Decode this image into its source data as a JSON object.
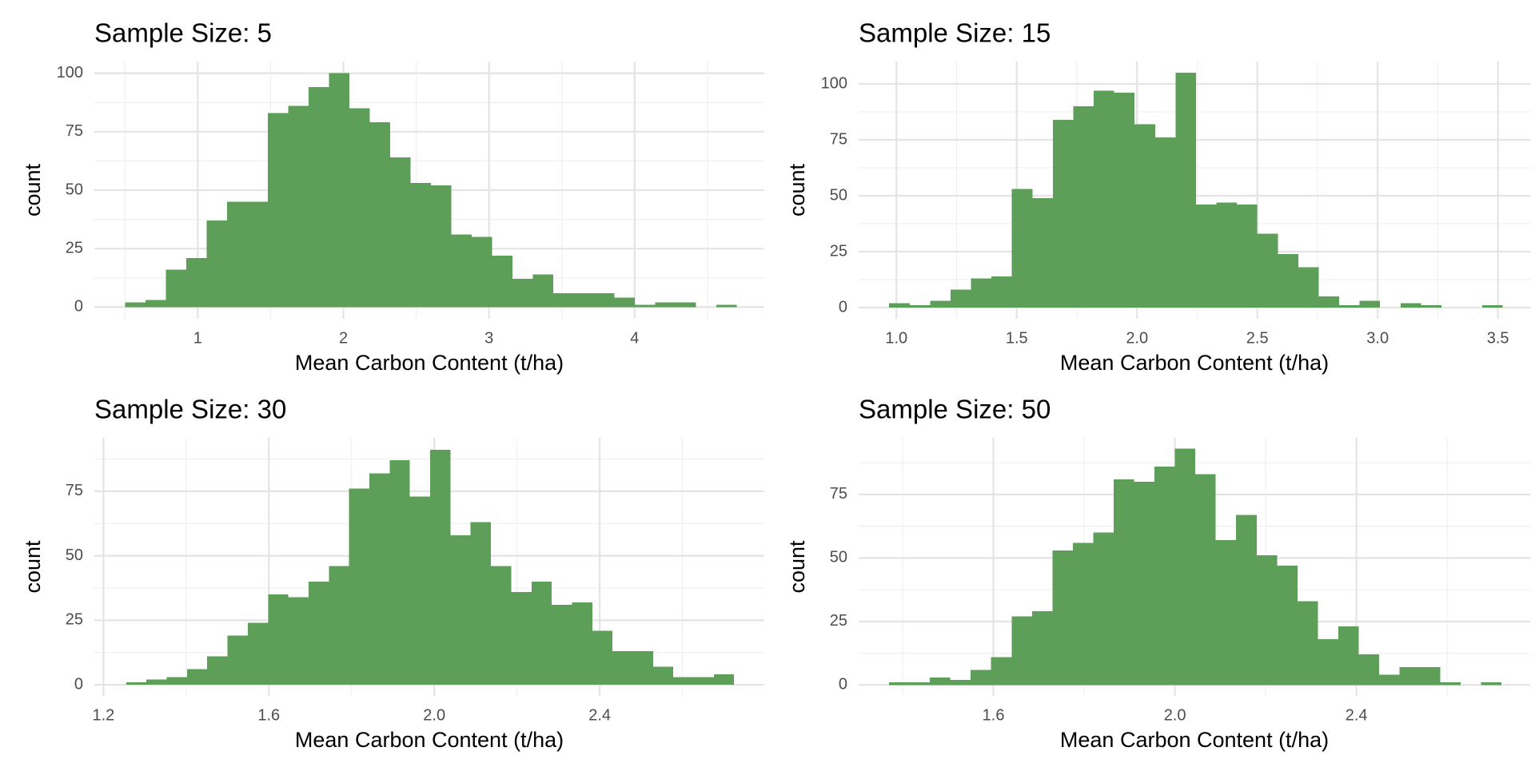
{
  "chart_data": [
    {
      "type": "histogram",
      "title": "Sample Size: 5",
      "xlabel": "Mean Carbon Content (t/ha)",
      "ylabel": "count",
      "bins": [
        0.5,
        0.64,
        0.78,
        0.92,
        1.06,
        1.2,
        1.34,
        1.48,
        1.62,
        1.76,
        1.9,
        2.04,
        2.18,
        2.32,
        2.46,
        2.6,
        2.74,
        2.88,
        3.02,
        3.16,
        3.3,
        3.44,
        3.58,
        3.72,
        3.86,
        4.0,
        4.14,
        4.28,
        4.42,
        4.56,
        4.7
      ],
      "values": [
        2,
        3,
        16,
        21,
        37,
        45,
        45,
        83,
        86,
        94,
        100,
        85,
        79,
        64,
        53,
        52,
        31,
        30,
        22,
        12,
        14,
        6,
        6,
        6,
        4,
        1,
        2,
        2,
        0,
        1
      ],
      "color": "#5d9e58",
      "xlim": [
        0.29,
        4.89
      ],
      "ylim": [
        -5,
        105
      ],
      "xticks": [
        1,
        2,
        3,
        4
      ],
      "yticks": [
        0,
        25,
        50,
        75,
        100
      ],
      "grid": true
    },
    {
      "type": "histogram",
      "title": "Sample Size: 15",
      "xlabel": "Mean Carbon Content (t/ha)",
      "ylabel": "count",
      "bins": [
        0.97,
        1.055,
        1.14,
        1.225,
        1.31,
        1.395,
        1.48,
        1.565,
        1.65,
        1.735,
        1.82,
        1.905,
        1.99,
        2.075,
        2.16,
        2.245,
        2.33,
        2.415,
        2.5,
        2.585,
        2.67,
        2.755,
        2.84,
        2.925,
        3.01,
        3.095,
        3.18,
        3.265,
        3.35,
        3.435,
        3.52
      ],
      "values": [
        2,
        1,
        3,
        8,
        13,
        14,
        53,
        49,
        84,
        90,
        97,
        96,
        82,
        76,
        105,
        46,
        47,
        46,
        33,
        24,
        18,
        5,
        1,
        3,
        0,
        2,
        1,
        0,
        0,
        1
      ],
      "color": "#5d9e58",
      "xlim": [
        0.843,
        3.634
      ],
      "ylim": [
        -5,
        110
      ],
      "xticks": [
        {
          "value": 1,
          "label": "1.0"
        },
        1.5,
        {
          "value": 2,
          "label": "2.0"
        },
        2.5,
        {
          "value": 3,
          "label": "3.0"
        },
        3.5
      ],
      "yticks": [
        0,
        25,
        50,
        75,
        100
      ],
      "grid": true
    },
    {
      "type": "histogram",
      "title": "Sample Size: 30",
      "xlabel": "Mean Carbon Content (t/ha)",
      "ylabel": "count",
      "bins": [
        1.255,
        1.304,
        1.353,
        1.402,
        1.451,
        1.5,
        1.549,
        1.598,
        1.647,
        1.696,
        1.745,
        1.794,
        1.843,
        1.892,
        1.941,
        1.99,
        2.039,
        2.088,
        2.137,
        2.186,
        2.235,
        2.284,
        2.333,
        2.382,
        2.431,
        2.48,
        2.529,
        2.578,
        2.627,
        2.676,
        2.725
      ],
      "values": [
        1,
        2,
        3,
        6,
        11,
        19,
        24,
        35,
        34,
        40,
        46,
        76,
        82,
        87,
        73,
        91,
        58,
        63,
        46,
        36,
        40,
        31,
        32,
        21,
        13,
        13,
        7,
        3,
        3,
        4
      ],
      "color": "#5d9e58",
      "xlim": [
        1.178,
        2.798
      ],
      "ylim": [
        -4.3,
        95.7
      ],
      "xticks": [
        1.2,
        1.6,
        {
          "value": 2,
          "label": "2.0"
        },
        2.4
      ],
      "yticks": [
        0,
        25,
        50,
        75
      ],
      "grid": true
    },
    {
      "type": "histogram",
      "title": "Sample Size: 50",
      "xlabel": "Mean Carbon Content (t/ha)",
      "ylabel": "count",
      "bins": [
        1.37,
        1.415,
        1.46,
        1.505,
        1.55,
        1.595,
        1.64,
        1.685,
        1.73,
        1.775,
        1.82,
        1.865,
        1.91,
        1.955,
        2.0,
        2.045,
        2.09,
        2.135,
        2.18,
        2.225,
        2.27,
        2.315,
        2.36,
        2.405,
        2.45,
        2.495,
        2.54,
        2.585,
        2.63,
        2.675,
        2.72
      ],
      "values": [
        1,
        1,
        3,
        2,
        6,
        11,
        27,
        29,
        53,
        56,
        60,
        81,
        80,
        86,
        93,
        83,
        57,
        67,
        51,
        47,
        33,
        18,
        23,
        12,
        4,
        7,
        7,
        1,
        0,
        1
      ],
      "color": "#5d9e58",
      "xlim": [
        1.303,
        2.783
      ],
      "ylim": [
        -4.3,
        97.3
      ],
      "xticks": [
        1.6,
        {
          "value": 2,
          "label": "2.0"
        },
        2.4
      ],
      "yticks": [
        0,
        25,
        50,
        75
      ],
      "grid": true
    }
  ]
}
